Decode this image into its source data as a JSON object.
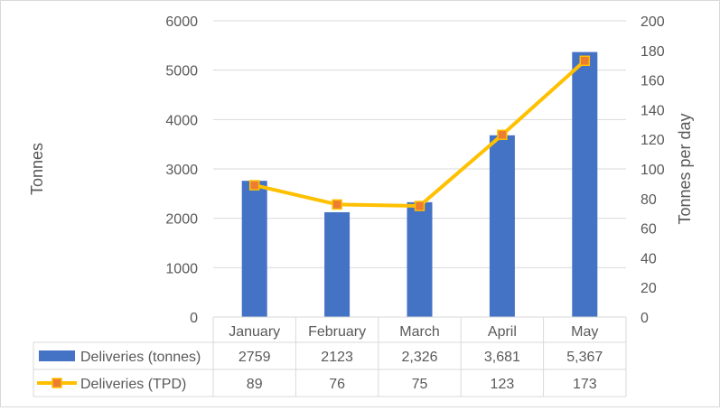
{
  "chart_data": {
    "type": "bar",
    "categories": [
      "January",
      "February",
      "March",
      "April",
      "May"
    ],
    "series": [
      {
        "name": "Deliveries (tonnes)",
        "kind": "bar",
        "axis": "left",
        "color": "#4472c4",
        "values": [
          2759,
          2123,
          2326,
          3681,
          5367
        ],
        "table_labels": [
          "2759",
          "2123",
          "2,326",
          "3,681",
          "5,367"
        ]
      },
      {
        "name": "Deliveries (TPD)",
        "kind": "line",
        "axis": "right",
        "color": "#ffc000",
        "marker_color": "#ed7d31",
        "values": [
          89,
          76,
          75,
          123,
          173
        ],
        "table_labels": [
          "89",
          "76",
          "75",
          "123",
          "173"
        ]
      }
    ],
    "y_left": {
      "label": "Tonnes",
      "range": [
        0,
        6000
      ],
      "ticks": [
        "0",
        "1000",
        "2000",
        "3000",
        "4000",
        "5000",
        "6000"
      ]
    },
    "y_right": {
      "label": "Tonnes per day",
      "range": [
        0,
        200
      ],
      "ticks": [
        "0",
        "20",
        "40",
        "60",
        "80",
        "100",
        "120",
        "140",
        "160",
        "180",
        "200"
      ]
    },
    "grid": true,
    "data_table": true
  }
}
